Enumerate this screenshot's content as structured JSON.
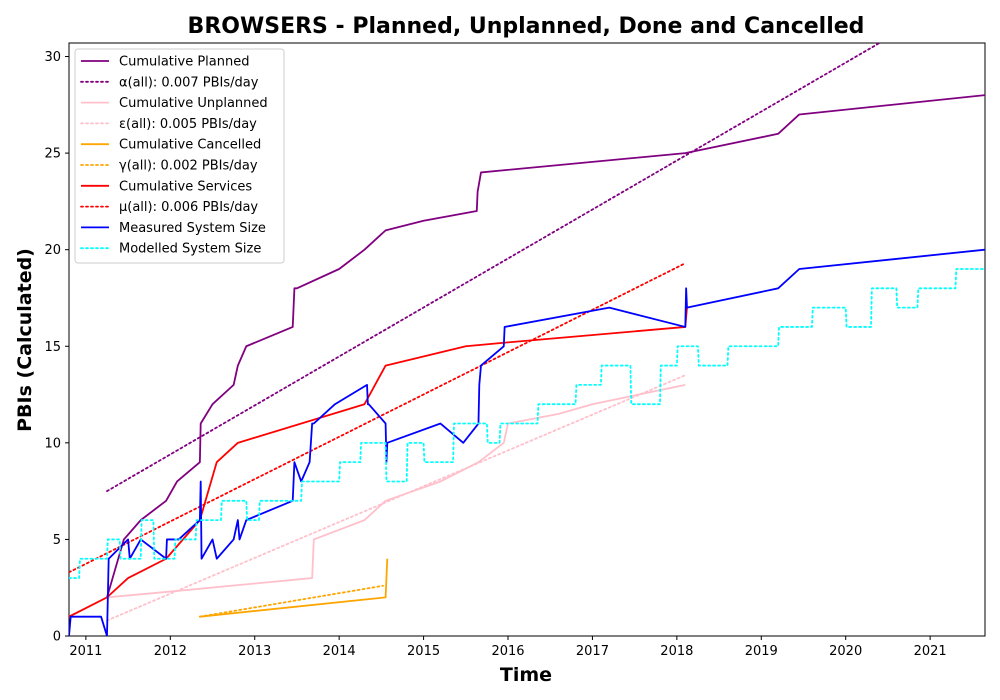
{
  "chart_data": {
    "type": "line",
    "title": "BROWSERS - Planned, Unplanned, Done  and Cancelled",
    "xlabel": "Time",
    "ylabel": "PBIs (Calculated)",
    "xlim": [
      2010.8,
      2021.65
    ],
    "ylim": [
      0,
      30.7
    ],
    "xticks": [
      2011,
      2012,
      2013,
      2014,
      2015,
      2016,
      2017,
      2018,
      2019,
      2020,
      2021
    ],
    "xtick_labels": [
      "2011",
      "2012",
      "2013",
      "2014",
      "2015",
      "2016",
      "2017",
      "2018",
      "2019",
      "2020",
      "2021"
    ],
    "yticks": [
      0,
      5,
      10,
      15,
      20,
      25,
      30
    ],
    "ytick_labels": [
      "0",
      "5",
      "10",
      "15",
      "20",
      "25",
      "30"
    ],
    "grid": false,
    "legend_position": "upper-left",
    "series": [
      {
        "name": "Cumulative Planned",
        "color": "#800080",
        "style": "solid",
        "x": [
          2011.25,
          2011.45,
          2011.65,
          2011.95,
          2012.08,
          2012.35,
          2012.36,
          2012.5,
          2012.75,
          2012.8,
          2012.9,
          2013.45,
          2013.47,
          2013.5,
          2014.0,
          2014.3,
          2014.55,
          2015.0,
          2015.63,
          2015.64,
          2015.68,
          2018.1,
          2019.2,
          2019.45,
          2021.65
        ],
        "y": [
          2,
          5,
          6,
          7,
          8,
          9,
          11,
          12,
          13,
          14,
          15,
          16,
          18,
          18,
          19,
          20,
          21,
          21.5,
          22,
          23,
          24,
          25,
          26,
          27,
          28
        ]
      },
      {
        "name": "α(all): 0.007 PBIs/day",
        "color": "#800080",
        "style": "dotted",
        "x": [
          2011.25,
          2020.4
        ],
        "y": [
          7.5,
          30.7
        ]
      },
      {
        "name": "Cumulative Unplanned",
        "color": "#ffc0cb",
        "style": "solid",
        "x": [
          2010.8,
          2011.25,
          2012.0,
          2013.68,
          2013.7,
          2014.3,
          2014.55,
          2015.2,
          2015.65,
          2015.95,
          2016.0,
          2016.6,
          2017.0,
          2018.1
        ],
        "y": [
          1,
          2,
          2.3,
          3,
          5,
          6,
          7,
          8,
          9,
          10,
          11,
          11.5,
          12,
          13
        ]
      },
      {
        "name": "ε(all): 0.005 PBIs/day",
        "color": "#ffc0cb",
        "style": "dotted",
        "x": [
          2011.25,
          2018.1
        ],
        "y": [
          0.8,
          13.5
        ]
      },
      {
        "name": "Cumulative Cancelled",
        "color": "#ffa500",
        "style": "solid",
        "x": [
          2012.35,
          2014.55,
          2014.57
        ],
        "y": [
          1,
          2,
          4
        ]
      },
      {
        "name": "γ(all): 0.002 PBIs/day",
        "color": "#ffa500",
        "style": "dotted",
        "x": [
          2012.35,
          2014.52
        ],
        "y": [
          1,
          2.6
        ]
      },
      {
        "name": "Cumulative Services",
        "color": "#ff0000",
        "style": "solid",
        "x": [
          2010.8,
          2011.25,
          2011.5,
          2011.95,
          2012.35,
          2012.55,
          2012.8,
          2014.3,
          2014.55,
          2015.5,
          2016.0,
          2018.1,
          2018.12
        ],
        "y": [
          1,
          2,
          3,
          4,
          6,
          9,
          10,
          12,
          14,
          15,
          15.2,
          16,
          17
        ]
      },
      {
        "name": "μ(all): 0.006 PBIs/day",
        "color": "#ff0000",
        "style": "dotted",
        "x": [
          2010.8,
          2018.1
        ],
        "y": [
          3.3,
          19.3
        ]
      },
      {
        "name": "Measured System Size",
        "color": "#0000ff",
        "style": "solid",
        "x": [
          2010.8,
          2010.82,
          2011.18,
          2011.25,
          2011.27,
          2011.5,
          2011.52,
          2011.65,
          2011.95,
          2011.96,
          2012.1,
          2012.35,
          2012.36,
          2012.37,
          2012.5,
          2012.55,
          2012.75,
          2012.8,
          2012.82,
          2012.9,
          2013.45,
          2013.47,
          2013.55,
          2013.65,
          2013.68,
          2013.7,
          2013.95,
          2014.33,
          2014.34,
          2014.35,
          2014.55,
          2014.56,
          2014.57,
          2015.2,
          2015.47,
          2015.65,
          2015.66,
          2015.68,
          2015.95,
          2015.96,
          2017.2,
          2018.1,
          2018.11,
          2018.12,
          2019.2,
          2019.45,
          2021.65
        ],
        "y": [
          0,
          1,
          1,
          0,
          4,
          5,
          4,
          5,
          4,
          5,
          5,
          6,
          8,
          4,
          5,
          4,
          5,
          6,
          5,
          6,
          7,
          9,
          8,
          9,
          11,
          11,
          12,
          13,
          12,
          12,
          11,
          9,
          10,
          11,
          10,
          11,
          13,
          14,
          15,
          16,
          17,
          16,
          18,
          17,
          18,
          19,
          20
        ]
      },
      {
        "name": "Modelled System Size",
        "color": "#00ffff",
        "style": "dotted",
        "x": [
          2010.8,
          2010.92,
          2010.93,
          2011.05,
          2011.06,
          2011.25,
          2011.26,
          2011.4,
          2011.41,
          2011.65,
          2011.66,
          2011.8,
          2011.81,
          2012.05,
          2012.06,
          2012.3,
          2012.31,
          2012.6,
          2012.61,
          2012.9,
          2012.91,
          2013.05,
          2013.06,
          2013.2,
          2013.21,
          2013.55,
          2013.56,
          2013.7,
          2013.71,
          2014.0,
          2014.01,
          2014.25,
          2014.26,
          2014.55,
          2014.56,
          2014.8,
          2014.81,
          2015.0,
          2015.01,
          2015.35,
          2015.36,
          2015.75,
          2015.76,
          2015.9,
          2015.91,
          2016.35,
          2016.36,
          2016.8,
          2016.81,
          2017.1,
          2017.11,
          2017.45,
          2017.46,
          2017.8,
          2017.81,
          2018.0,
          2018.01,
          2018.25,
          2018.26,
          2018.6,
          2018.61,
          2019.2,
          2019.21,
          2019.6,
          2019.61,
          2020.0,
          2020.01,
          2020.3,
          2020.31,
          2020.6,
          2020.61,
          2020.85,
          2020.86,
          2021.3,
          2021.31,
          2021.65
        ],
        "y": [
          3,
          3,
          4,
          4,
          4,
          4,
          5,
          5,
          4,
          4,
          6,
          6,
          4,
          4,
          5,
          5,
          6,
          6,
          7,
          7,
          6,
          6,
          7,
          7,
          7,
          7,
          8,
          8,
          8,
          8,
          9,
          9,
          10,
          10,
          8,
          8,
          10,
          10,
          9,
          9,
          11,
          11,
          10,
          10,
          11,
          11,
          12,
          12,
          13,
          13,
          14,
          14,
          12,
          12,
          14,
          14,
          15,
          15,
          14,
          14,
          15,
          15,
          16,
          16,
          17,
          17,
          16,
          16,
          18,
          18,
          17,
          17,
          18,
          18,
          19,
          19
        ]
      }
    ]
  }
}
